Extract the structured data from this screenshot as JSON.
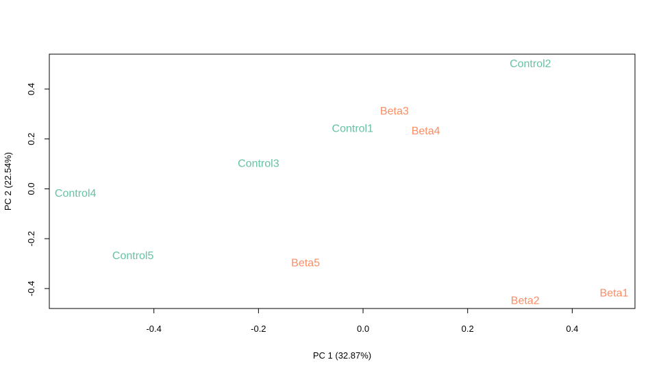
{
  "chart_data": {
    "type": "scatter",
    "xlabel": "PC 1 (32.87%)",
    "ylabel": "PC 2 (22.54%)",
    "xlim": [
      -0.6,
      0.52
    ],
    "ylim": [
      -0.48,
      0.54
    ],
    "x_ticks": [
      -0.4,
      -0.2,
      0.0,
      0.2,
      0.4
    ],
    "x_tick_labels": [
      "-0.4",
      "-0.2",
      "0.0",
      "0.2",
      "0.4"
    ],
    "y_ticks": [
      -0.4,
      -0.2,
      0.0,
      0.2,
      0.4
    ],
    "y_tick_labels": [
      "-0.4",
      "-0.2",
      "0.0",
      "0.2",
      "0.4"
    ],
    "grid": false,
    "colors": {
      "Control": "#66C2A5",
      "Beta": "#FC8D62"
    },
    "points": [
      {
        "label": "Control1",
        "group": "Control",
        "x": -0.02,
        "y": 0.24
      },
      {
        "label": "Control2",
        "group": "Control",
        "x": 0.32,
        "y": 0.5
      },
      {
        "label": "Control3",
        "group": "Control",
        "x": -0.2,
        "y": 0.1
      },
      {
        "label": "Control4",
        "group": "Control",
        "x": -0.55,
        "y": -0.02
      },
      {
        "label": "Control5",
        "group": "Control",
        "x": -0.44,
        "y": -0.27
      },
      {
        "label": "Beta1",
        "group": "Beta",
        "x": 0.48,
        "y": -0.42
      },
      {
        "label": "Beta2",
        "group": "Beta",
        "x": 0.31,
        "y": -0.45
      },
      {
        "label": "Beta3",
        "group": "Beta",
        "x": 0.06,
        "y": 0.31
      },
      {
        "label": "Beta4",
        "group": "Beta",
        "x": 0.12,
        "y": 0.23
      },
      {
        "label": "Beta5",
        "group": "Beta",
        "x": -0.11,
        "y": -0.3
      }
    ]
  }
}
